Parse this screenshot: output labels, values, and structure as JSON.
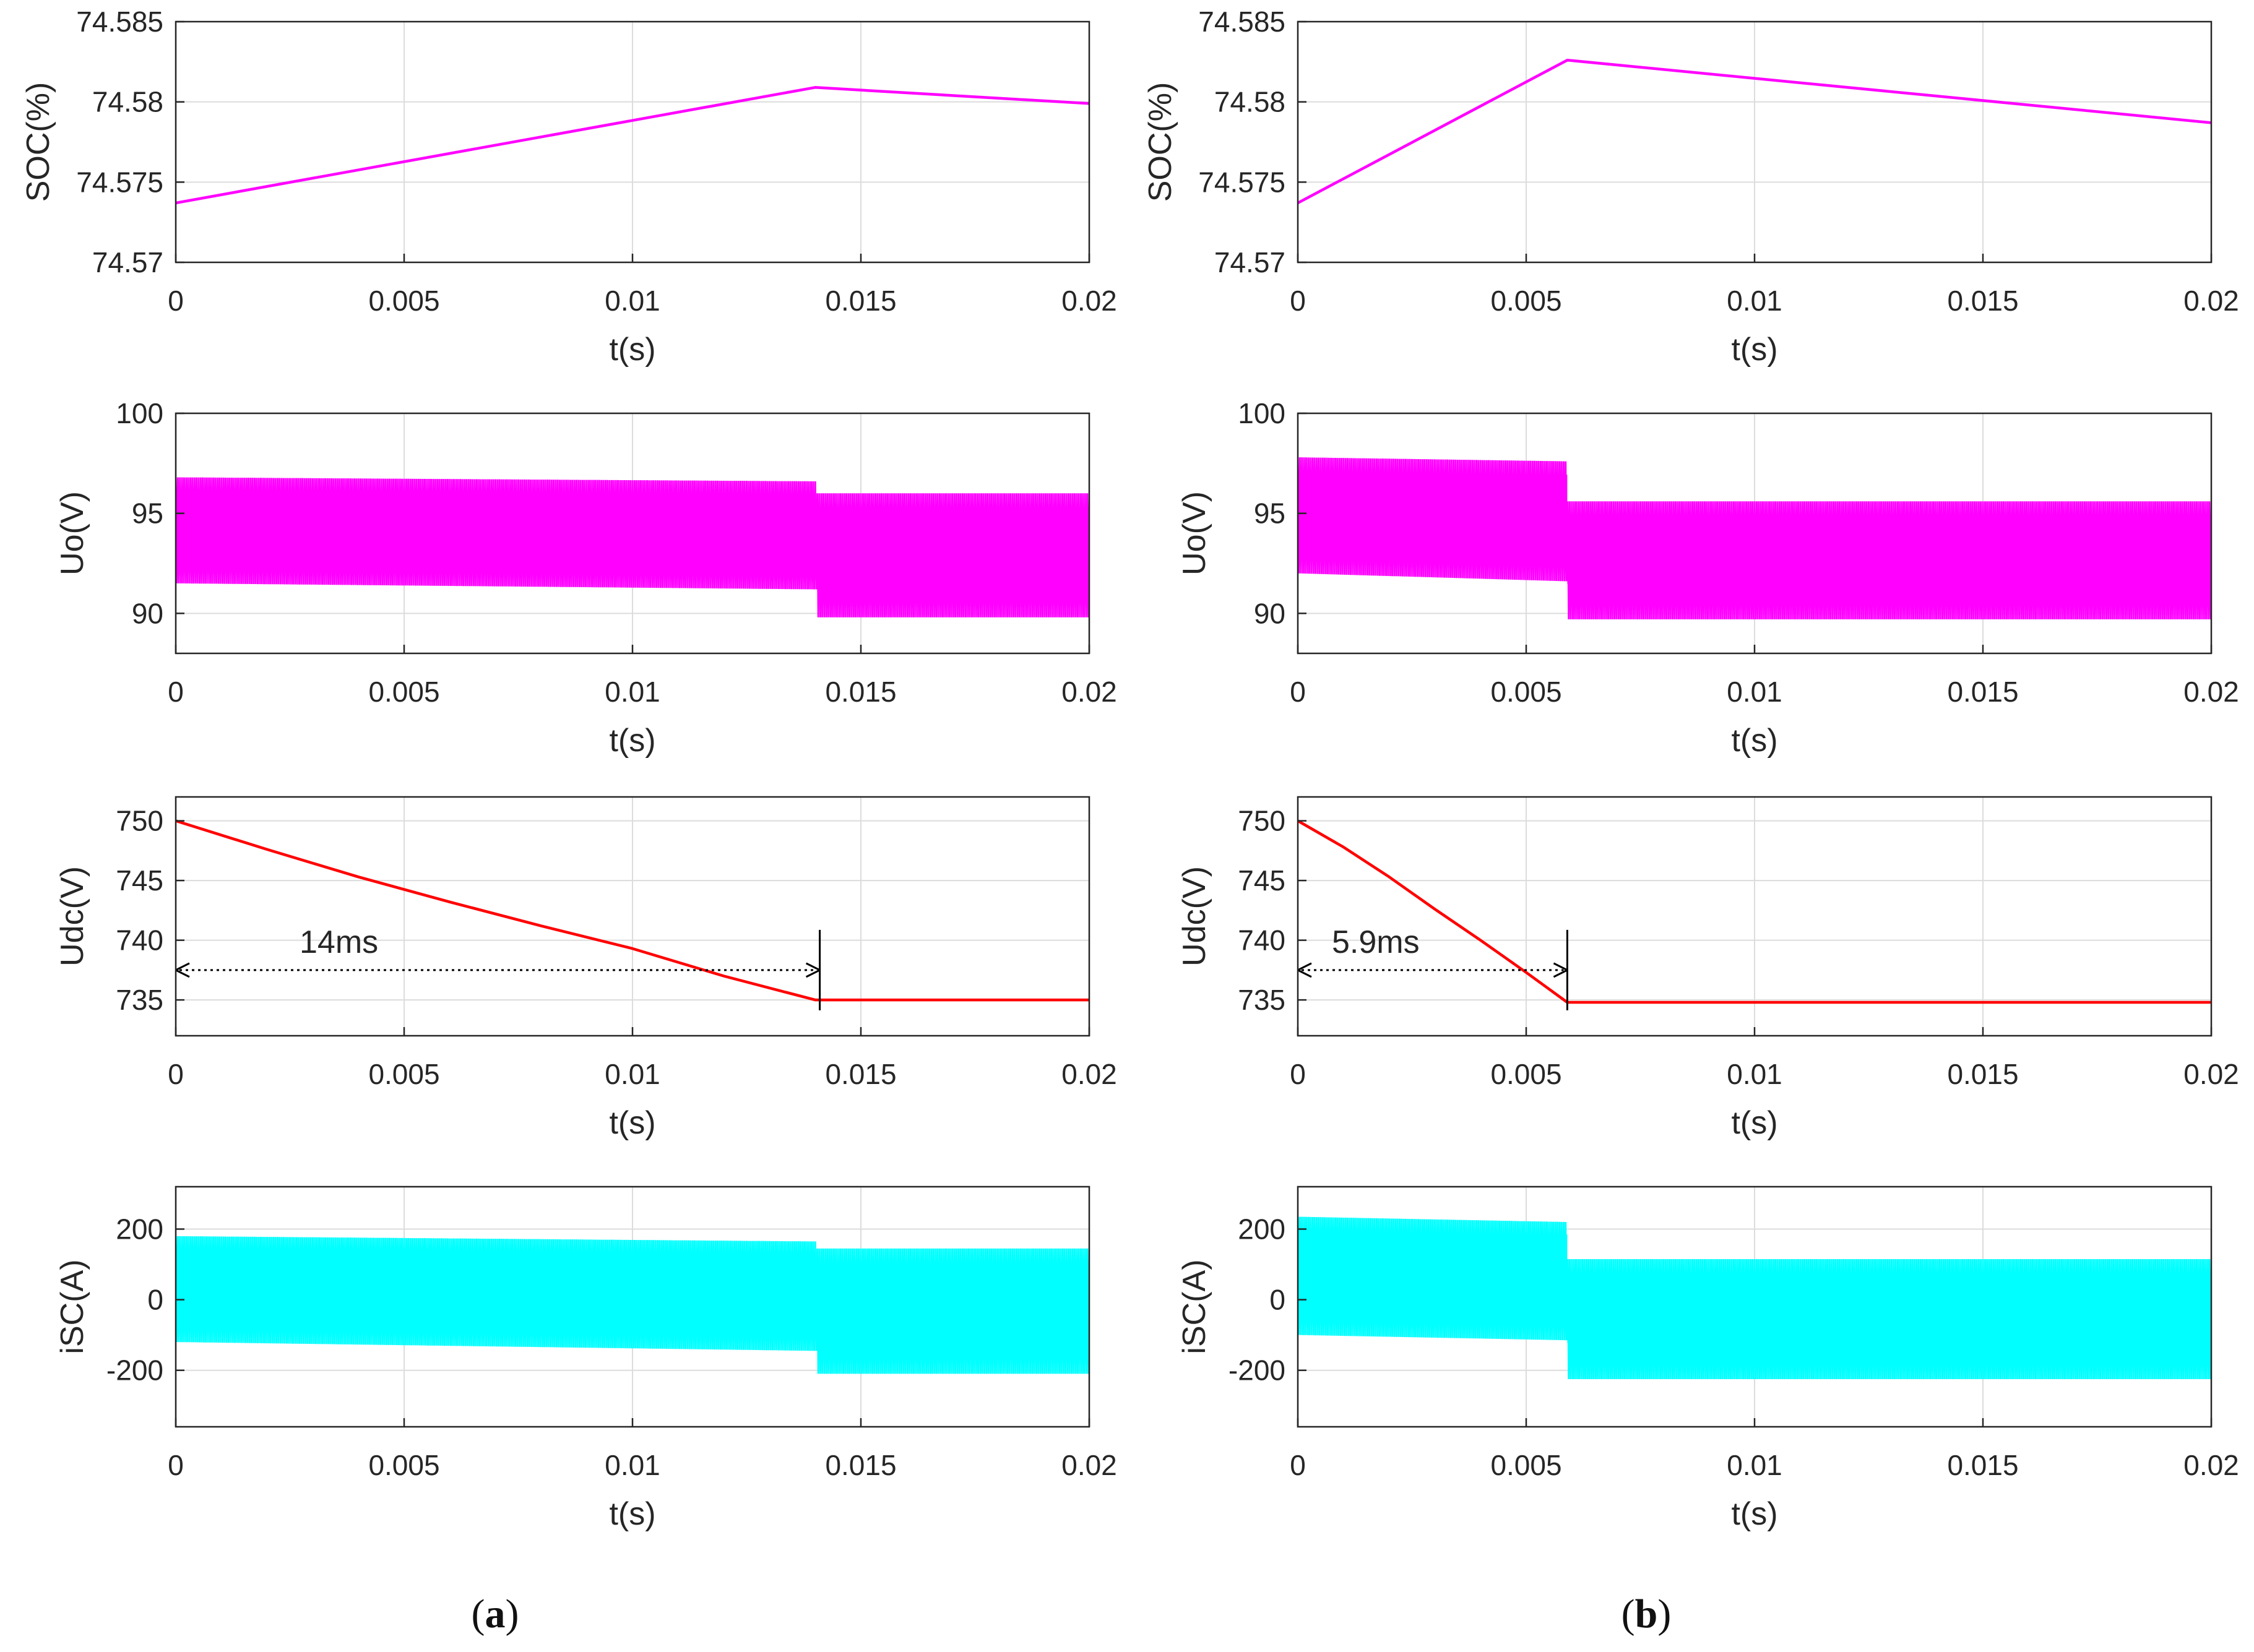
{
  "figure": {
    "panel_labels": [
      {
        "open": "(",
        "letter": "a",
        "close": ")"
      },
      {
        "open": "(",
        "letter": "b",
        "close": ")"
      }
    ]
  },
  "chart_data": [
    {
      "type": "line",
      "panel": "a",
      "title": "",
      "xlabel": "t(s)",
      "ylabel": "SOC(%)",
      "xlim": [
        0,
        0.02
      ],
      "ylim": [
        74.57,
        74.585
      ],
      "xticks": [
        0,
        0.005,
        0.01,
        0.015,
        0.02
      ],
      "xtick_labels": [
        "0",
        "0.005",
        "0.01",
        "0.015",
        "0.02"
      ],
      "yticks": [
        74.57,
        74.575,
        74.58,
        74.585
      ],
      "ytick_labels": [
        "74.57",
        "74.575",
        "74.58",
        "74.585"
      ],
      "grid": true,
      "color": "#ff00ff",
      "series": [
        {
          "name": "SOC",
          "x": [
            0,
            0.014,
            0.02
          ],
          "y": [
            74.5737,
            74.5809,
            74.5799
          ]
        }
      ]
    },
    {
      "type": "line",
      "panel": "a",
      "title": "",
      "xlabel": "t(s)",
      "ylabel": "Uo(V)",
      "xlim": [
        0,
        0.02
      ],
      "ylim": [
        88,
        100
      ],
      "xticks": [
        0,
        0.005,
        0.01,
        0.015,
        0.02
      ],
      "xtick_labels": [
        "0",
        "0.005",
        "0.01",
        "0.015",
        "0.02"
      ],
      "yticks": [
        90,
        95,
        100
      ],
      "ytick_labels": [
        "90",
        "95",
        "100"
      ],
      "grid": true,
      "color": "#ff00ff",
      "signal": "oscillating band (PWM ripple)",
      "envelope": [
        {
          "t_start": 0,
          "t_end": 0.014,
          "upper": [
            96.8,
            96.6
          ],
          "lower": [
            91.5,
            91.2
          ]
        },
        {
          "t_start": 0.014,
          "t_end": 0.02,
          "upper": [
            96.0,
            96.0
          ],
          "lower": [
            89.8,
            89.8
          ]
        }
      ]
    },
    {
      "type": "line",
      "panel": "a",
      "title": "",
      "xlabel": "t(s)",
      "ylabel": "Udc(V)",
      "xlim": [
        0,
        0.02
      ],
      "ylim": [
        732,
        752
      ],
      "xticks": [
        0,
        0.005,
        0.01,
        0.015,
        0.02
      ],
      "xtick_labels": [
        "0",
        "0.005",
        "0.01",
        "0.015",
        "0.02"
      ],
      "yticks": [
        735,
        740,
        745,
        750
      ],
      "ytick_labels": [
        "735",
        "740",
        "745",
        "750"
      ],
      "grid": true,
      "color": "#ff0000",
      "series": [
        {
          "name": "Udc",
          "x": [
            0,
            0.002,
            0.004,
            0.006,
            0.008,
            0.01,
            0.012,
            0.014,
            0.02
          ],
          "y": [
            750,
            747.6,
            745.3,
            743.2,
            741.2,
            739.3,
            737,
            735,
            735
          ]
        }
      ],
      "annotations": [
        {
          "text": "14ms",
          "x_from": 0,
          "x_to": 0.0141,
          "y": 737.5
        }
      ]
    },
    {
      "type": "line",
      "panel": "a",
      "title": "",
      "xlabel": "t(s)",
      "ylabel": "iSC(A)",
      "xlim": [
        0,
        0.02
      ],
      "ylim": [
        -360,
        320
      ],
      "xticks": [
        0,
        0.005,
        0.01,
        0.015,
        0.02
      ],
      "xtick_labels": [
        "0",
        "0.005",
        "0.01",
        "0.015",
        "0.02"
      ],
      "yticks": [
        -200,
        0,
        200
      ],
      "ytick_labels": [
        "-200",
        "0",
        "200"
      ],
      "grid": true,
      "color": "#00ffff",
      "signal": "oscillating band (PWM ripple)",
      "envelope": [
        {
          "t_start": 0,
          "t_end": 0.014,
          "upper": [
            180,
            165
          ],
          "lower": [
            -120,
            -145
          ]
        },
        {
          "t_start": 0.014,
          "t_end": 0.02,
          "upper": [
            145,
            145
          ],
          "lower": [
            -210,
            -210
          ]
        }
      ]
    },
    {
      "type": "line",
      "panel": "b",
      "title": "",
      "xlabel": "t(s)",
      "ylabel": "SOC(%)",
      "xlim": [
        0,
        0.02
      ],
      "ylim": [
        74.57,
        74.585
      ],
      "xticks": [
        0,
        0.005,
        0.01,
        0.015,
        0.02
      ],
      "xtick_labels": [
        "0",
        "0.005",
        "0.01",
        "0.015",
        "0.02"
      ],
      "yticks": [
        74.57,
        74.575,
        74.58,
        74.585
      ],
      "ytick_labels": [
        "74.57",
        "74.575",
        "74.58",
        "74.585"
      ],
      "grid": true,
      "color": "#ff00ff",
      "series": [
        {
          "name": "SOC",
          "x": [
            0,
            0.0059,
            0.02
          ],
          "y": [
            74.5737,
            74.5826,
            74.5787
          ]
        }
      ]
    },
    {
      "type": "line",
      "panel": "b",
      "title": "",
      "xlabel": "t(s)",
      "ylabel": "Uo(V)",
      "xlim": [
        0,
        0.02
      ],
      "ylim": [
        88,
        100
      ],
      "xticks": [
        0,
        0.005,
        0.01,
        0.015,
        0.02
      ],
      "xtick_labels": [
        "0",
        "0.005",
        "0.01",
        "0.015",
        "0.02"
      ],
      "yticks": [
        90,
        95,
        100
      ],
      "ytick_labels": [
        "90",
        "95",
        "100"
      ],
      "grid": true,
      "color": "#ff00ff",
      "signal": "oscillating band (PWM ripple)",
      "envelope": [
        {
          "t_start": 0,
          "t_end": 0.0059,
          "upper": [
            97.8,
            97.6
          ],
          "lower": [
            92.0,
            91.6
          ]
        },
        {
          "t_start": 0.0059,
          "t_end": 0.02,
          "upper": [
            95.6,
            95.6
          ],
          "lower": [
            89.7,
            89.7
          ]
        }
      ]
    },
    {
      "type": "line",
      "panel": "b",
      "title": "",
      "xlabel": "t(s)",
      "ylabel": "Udc(V)",
      "xlim": [
        0,
        0.02
      ],
      "ylim": [
        732,
        752
      ],
      "xticks": [
        0,
        0.005,
        0.01,
        0.015,
        0.02
      ],
      "xtick_labels": [
        "0",
        "0.005",
        "0.01",
        "0.015",
        "0.02"
      ],
      "yticks": [
        735,
        740,
        745,
        750
      ],
      "ytick_labels": [
        "735",
        "740",
        "745",
        "750"
      ],
      "grid": true,
      "color": "#ff0000",
      "series": [
        {
          "name": "Udc",
          "x": [
            0,
            0.001,
            0.002,
            0.003,
            0.004,
            0.005,
            0.0059,
            0.02
          ],
          "y": [
            750,
            747.8,
            745.3,
            742.6,
            740,
            737.3,
            734.8,
            734.8
          ]
        }
      ],
      "annotations": [
        {
          "text": "5.9ms",
          "x_from": 0,
          "x_to": 0.0059,
          "y": 737.5
        }
      ]
    },
    {
      "type": "line",
      "panel": "b",
      "title": "",
      "xlabel": "t(s)",
      "ylabel": "iSC(A)",
      "xlim": [
        0,
        0.02
      ],
      "ylim": [
        -360,
        320
      ],
      "xticks": [
        0,
        0.005,
        0.01,
        0.015,
        0.02
      ],
      "xtick_labels": [
        "0",
        "0.005",
        "0.01",
        "0.015",
        "0.02"
      ],
      "yticks": [
        -200,
        0,
        200
      ],
      "ytick_labels": [
        "-200",
        "0",
        "200"
      ],
      "grid": true,
      "color": "#00ffff",
      "signal": "oscillating band (PWM ripple)",
      "envelope": [
        {
          "t_start": 0,
          "t_end": 0.0059,
          "upper": [
            235,
            220
          ],
          "lower": [
            -100,
            -115
          ]
        },
        {
          "t_start": 0.0059,
          "t_end": 0.02,
          "upper": [
            115,
            115
          ],
          "lower": [
            -225,
            -225
          ]
        }
      ]
    }
  ]
}
